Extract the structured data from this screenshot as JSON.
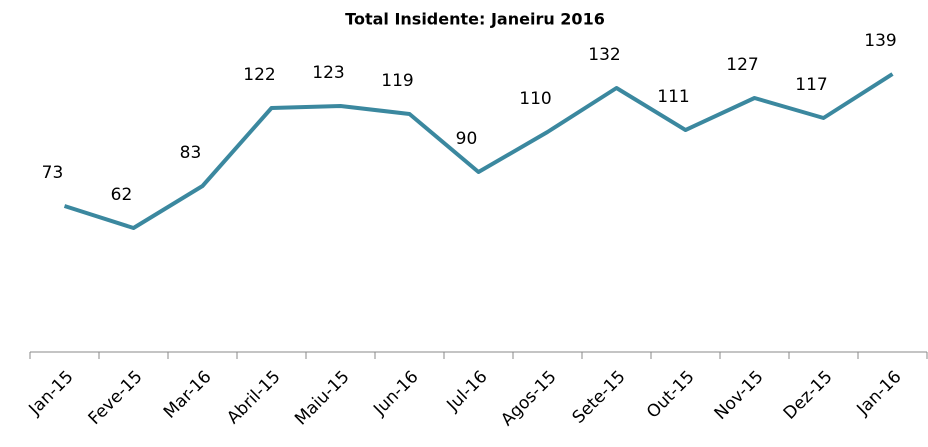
{
  "chart_data": {
    "type": "line",
    "title": "Total Insidente: Janeiru 2016",
    "categories": [
      "Jan-15",
      "Feve-15",
      "Mar-16",
      "Abril-15",
      "Maiu-15",
      "Jun-16",
      "Jul-16",
      "Agos-15",
      "Sete-15",
      "Out-15",
      "Nov-15",
      "Dez-15",
      "Jan-16"
    ],
    "values": [
      73,
      62,
      83,
      122,
      123,
      119,
      90,
      110,
      132,
      111,
      127,
      117,
      139
    ],
    "color": "#3b889f",
    "ylim": [
      0,
      160
    ]
  }
}
